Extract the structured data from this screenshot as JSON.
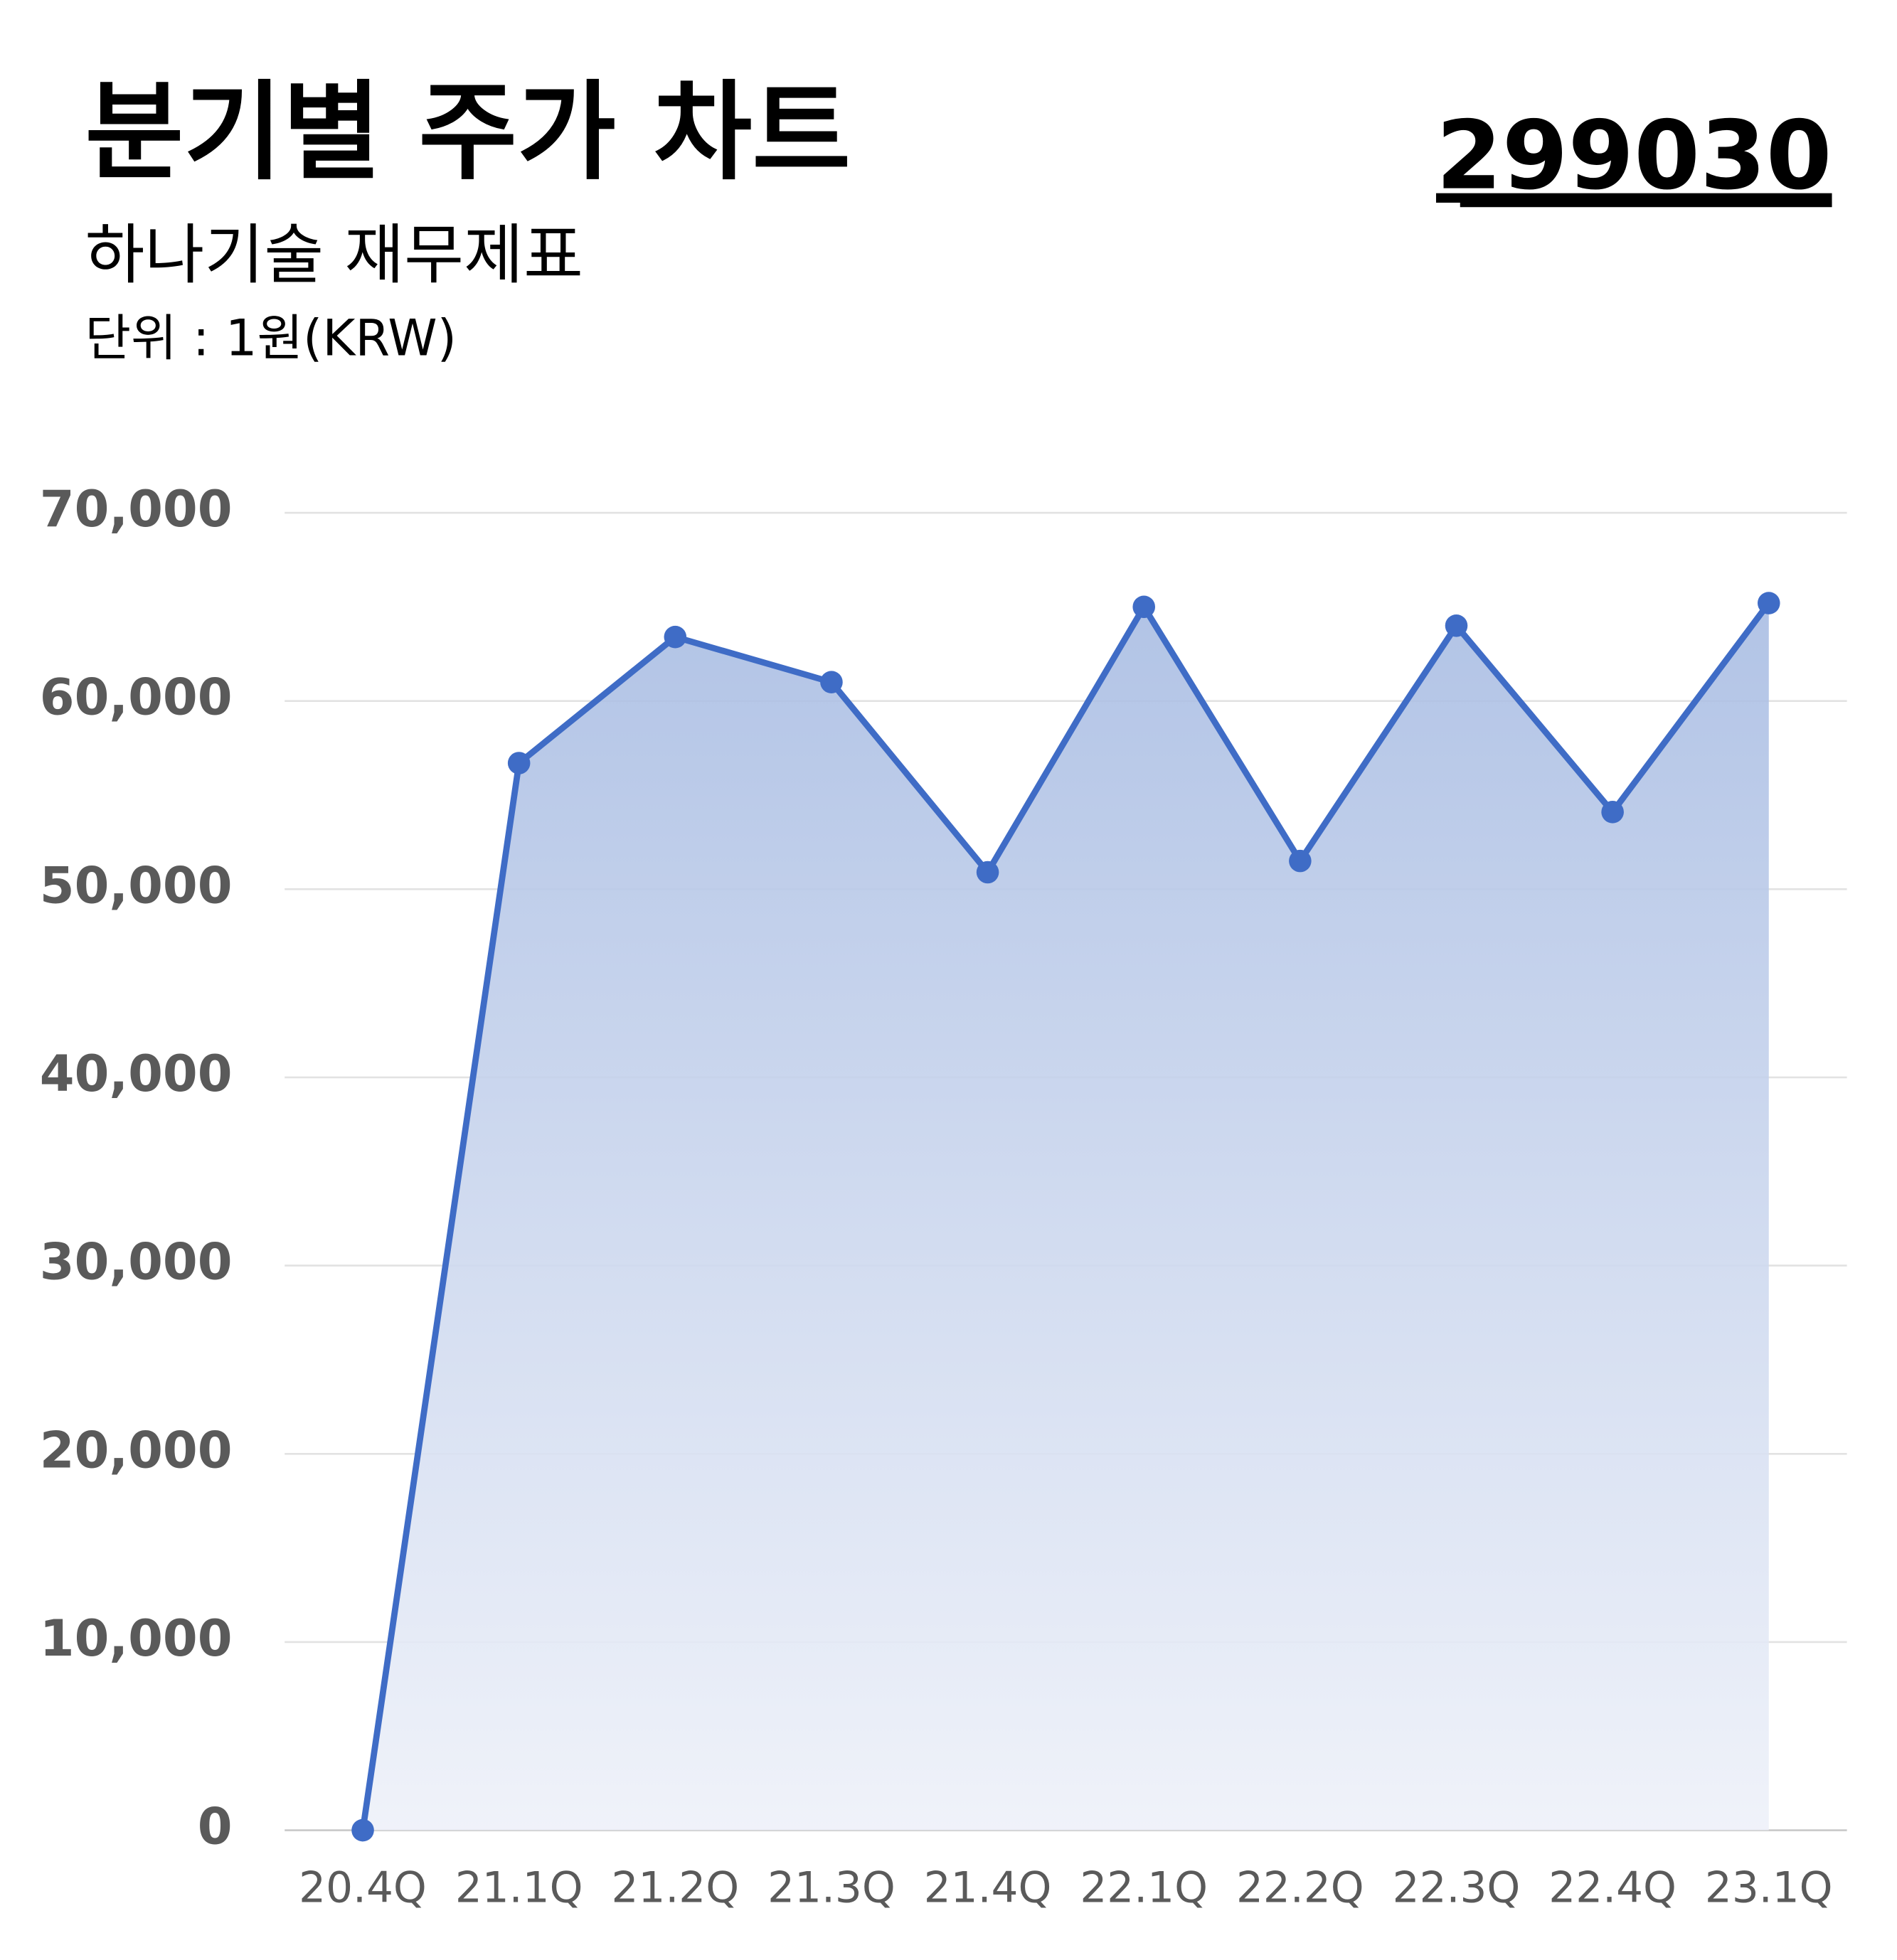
{
  "chart_data": {
    "type": "area",
    "title": "분기별 주가 차트",
    "code": "299030",
    "subtitle": "하나기술 재무제표",
    "unit": "단위 : 1원(KRW)",
    "categories": [
      "20.4Q",
      "21.1Q",
      "21.2Q",
      "21.3Q",
      "21.4Q",
      "22.1Q",
      "22.2Q",
      "22.3Q",
      "22.4Q",
      "23.1Q"
    ],
    "values": [
      0,
      56700,
      63400,
      61000,
      50900,
      65000,
      51500,
      64000,
      54100,
      65200
    ],
    "color": "#3f6cc6",
    "ylim": [
      0,
      70000
    ],
    "yticks": [
      0,
      {
        "value": 10000,
        "label": "10,000"
      },
      {
        "value": 20000,
        "label": "20,000"
      },
      {
        "value": 30000,
        "label": "30,000"
      },
      {
        "value": 40000,
        "label": "40,000"
      },
      {
        "value": 50000,
        "label": "50,000"
      },
      {
        "value": 60000,
        "label": "60,000"
      },
      {
        "value": 70000,
        "label": "70,000"
      }
    ],
    "grid": true
  }
}
